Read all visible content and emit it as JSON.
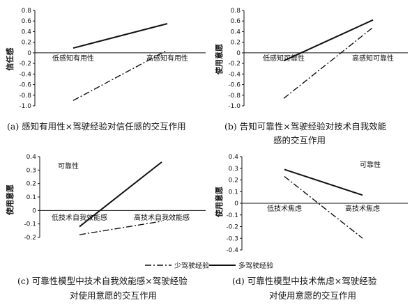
{
  "legend": {
    "few_label": "少驾驶经验",
    "many_label": "多驾驶经验"
  },
  "chart_data": [
    {
      "type": "line",
      "ylabel": "信任感",
      "categories": [
        "低感知有用性",
        "高感知有用性"
      ],
      "ylim": [
        -1.0,
        0.8
      ],
      "yticks": [
        -1.0,
        -0.8,
        -0.6,
        -0.4,
        -0.2,
        0,
        0.2,
        0.4,
        0.6,
        0.8
      ],
      "ytick_labels": [
        "-1.0",
        "-0.8",
        "-0.6",
        "-0.4",
        "-0.2",
        "0",
        "0.2",
        "0.4",
        "0.6",
        "0.8"
      ],
      "series": [
        {
          "name": "少驾驶经验",
          "style": "dashdot",
          "values": [
            -0.9,
            0.05
          ]
        },
        {
          "name": "多驾驶经验",
          "style": "solid",
          "values": [
            0.09,
            0.55
          ]
        }
      ],
      "annotation": "",
      "caption": [
        "(a) 感知有用性×驾驶经验对信任感的交互作用"
      ]
    },
    {
      "type": "line",
      "ylabel": "使用意愿",
      "categories": [
        "低感知可靠性",
        "高感知可靠性"
      ],
      "ylim": [
        -1.0,
        0.8
      ],
      "yticks": [
        -1.0,
        -0.8,
        -0.6,
        -0.4,
        -0.2,
        0,
        0.2,
        0.4,
        0.6,
        0.8
      ],
      "ytick_labels": [
        "-1.0",
        "-0.8",
        "-0.6",
        "-0.4",
        "-0.2",
        "0",
        "0.2",
        "0.4",
        "0.6",
        "0.8"
      ],
      "series": [
        {
          "name": "少驾驶经验",
          "style": "dashdot",
          "values": [
            -0.86,
            0.48
          ]
        },
        {
          "name": "多驾驶经验",
          "style": "solid",
          "values": [
            -0.15,
            0.62
          ]
        }
      ],
      "annotation": "",
      "caption": [
        "(b) 告知可靠性×驾驶经验对技术自我效能",
        "感的交互作用"
      ]
    },
    {
      "type": "line",
      "ylabel": "使用意愿",
      "categories": [
        "低技术自我效能感",
        "高技术自我效能感"
      ],
      "ylim": [
        -0.2,
        0.4
      ],
      "yticks": [
        -0.2,
        -0.1,
        0,
        0.1,
        0.2,
        0.3,
        0.4
      ],
      "ytick_labels": [
        "-0.2",
        "-0.1",
        "0",
        "0.1",
        "0.2",
        "0.3",
        "0.4"
      ],
      "series": [
        {
          "name": "少驾驶经验",
          "style": "dashdot",
          "values": [
            -0.18,
            -0.08
          ]
        },
        {
          "name": "多驾驶经验",
          "style": "solid",
          "values": [
            -0.12,
            0.36
          ]
        }
      ],
      "annotation": "可靠性",
      "caption": [
        "(c) 可靠性模型中技术自我效能感×驾驶经验",
        "对使用意愿的交互作用"
      ]
    },
    {
      "type": "line",
      "ylabel": "使用意愿",
      "categories": [
        "低技术焦虑",
        "高技术焦虑"
      ],
      "ylim": [
        -0.4,
        0.4
      ],
      "yticks": [
        -0.4,
        -0.3,
        -0.2,
        -0.1,
        0,
        0.1,
        0.2,
        0.3,
        0.4
      ],
      "ytick_labels": [
        "-0.4",
        "-0.3",
        "-0.2",
        "-0.1",
        "0",
        "0.1",
        "0.2",
        "0.3",
        "0.4"
      ],
      "series": [
        {
          "name": "少驾驶经验",
          "style": "dashdot",
          "values": [
            0.23,
            -0.3
          ]
        },
        {
          "name": "多驾驶经验",
          "style": "solid",
          "values": [
            0.29,
            0.07
          ]
        }
      ],
      "annotation": "可靠性",
      "caption": [
        "(d) 可靠性模型中技术焦虑×驾驶经验",
        "对使用意愿的交互作用"
      ]
    }
  ]
}
